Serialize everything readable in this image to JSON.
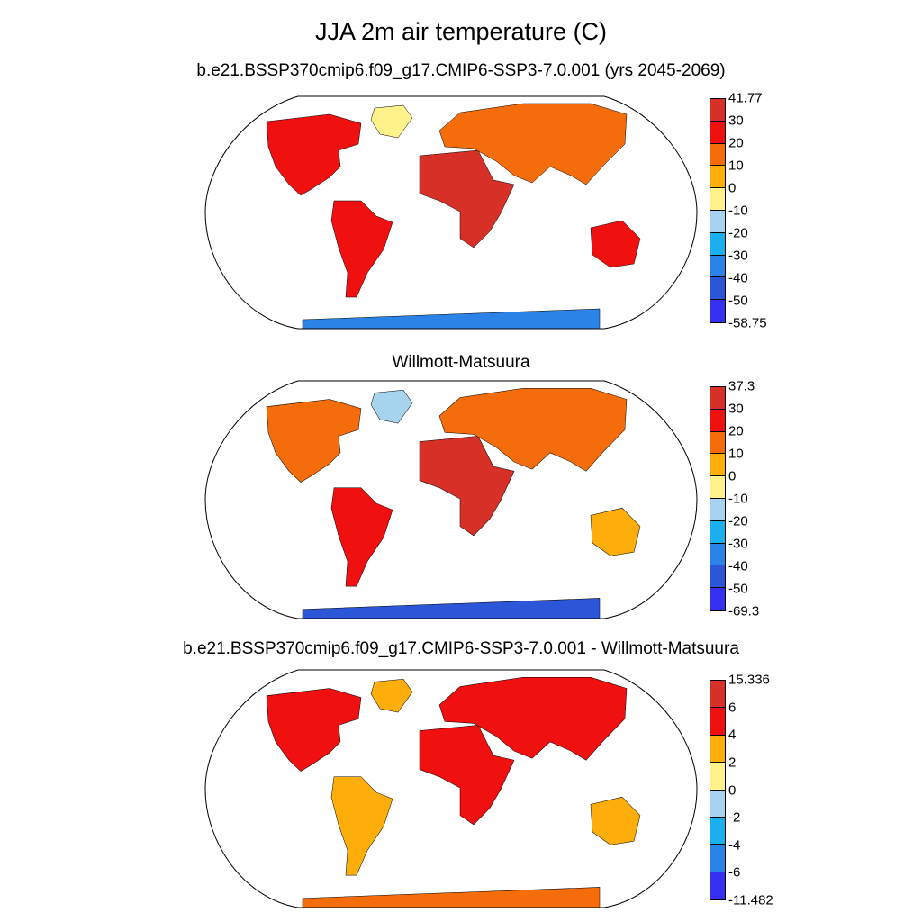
{
  "title": "JJA 2m air temperature (C)",
  "panels": [
    {
      "title": "b.e21.BSSP370cmip6.f09_g17.CMIP6-SSP3-7.0.001 (yrs 2045-2069)",
      "colorbar": {
        "labels": [
          "41.77",
          "30",
          "20",
          "10",
          "0",
          "-10",
          "-20",
          "-30",
          "-40",
          "-50",
          "-58.75"
        ],
        "colors": [
          "#d73027",
          "#f01010",
          "#f46d0a",
          "#fdae0b",
          "#fff28a",
          "#a6d4ee",
          "#1ab0ef",
          "#2b83e8",
          "#2c56d8",
          "#3330f0"
        ]
      },
      "region_colors": {
        "north_america": "#f01010",
        "greenland": "#fff28a",
        "south_america": "#f01010",
        "africa": "#d73027",
        "eurasia": "#f46d0a",
        "australia": "#f01010",
        "antarctica": "#2b83e8"
      }
    },
    {
      "title": "Willmott-Matsuura",
      "colorbar": {
        "labels": [
          "37.3",
          "30",
          "20",
          "10",
          "0",
          "-10",
          "-20",
          "-30",
          "-40",
          "-50",
          "-69.3"
        ],
        "colors": [
          "#d73027",
          "#f01010",
          "#f46d0a",
          "#fdae0b",
          "#fff28a",
          "#a6d4ee",
          "#1ab0ef",
          "#2b83e8",
          "#2c56d8",
          "#3330f0"
        ]
      },
      "region_colors": {
        "north_america": "#f46d0a",
        "greenland": "#a6d4ee",
        "south_america": "#f01010",
        "africa": "#d73027",
        "eurasia": "#f46d0a",
        "australia": "#fdae0b",
        "antarctica": "#2c56d8"
      }
    },
    {
      "title": "b.e21.BSSP370cmip6.f09_g17.CMIP6-SSP3-7.0.001 - Willmott-Matsuura",
      "colorbar": {
        "labels": [
          "15.336",
          "6",
          "4",
          "2",
          "0",
          "-2",
          "-4",
          "-6",
          "-11.482"
        ],
        "colors": [
          "#d73027",
          "#f01010",
          "#fdae0b",
          "#fff28a",
          "#a6d4ee",
          "#1ab0ef",
          "#2b83e8",
          "#3330f0"
        ]
      },
      "region_colors": {
        "north_america": "#f01010",
        "greenland": "#fdae0b",
        "south_america": "#fdae0b",
        "africa": "#f01010",
        "eurasia": "#f01010",
        "australia": "#fdae0b",
        "antarctica": "#f46d0a"
      }
    }
  ]
}
